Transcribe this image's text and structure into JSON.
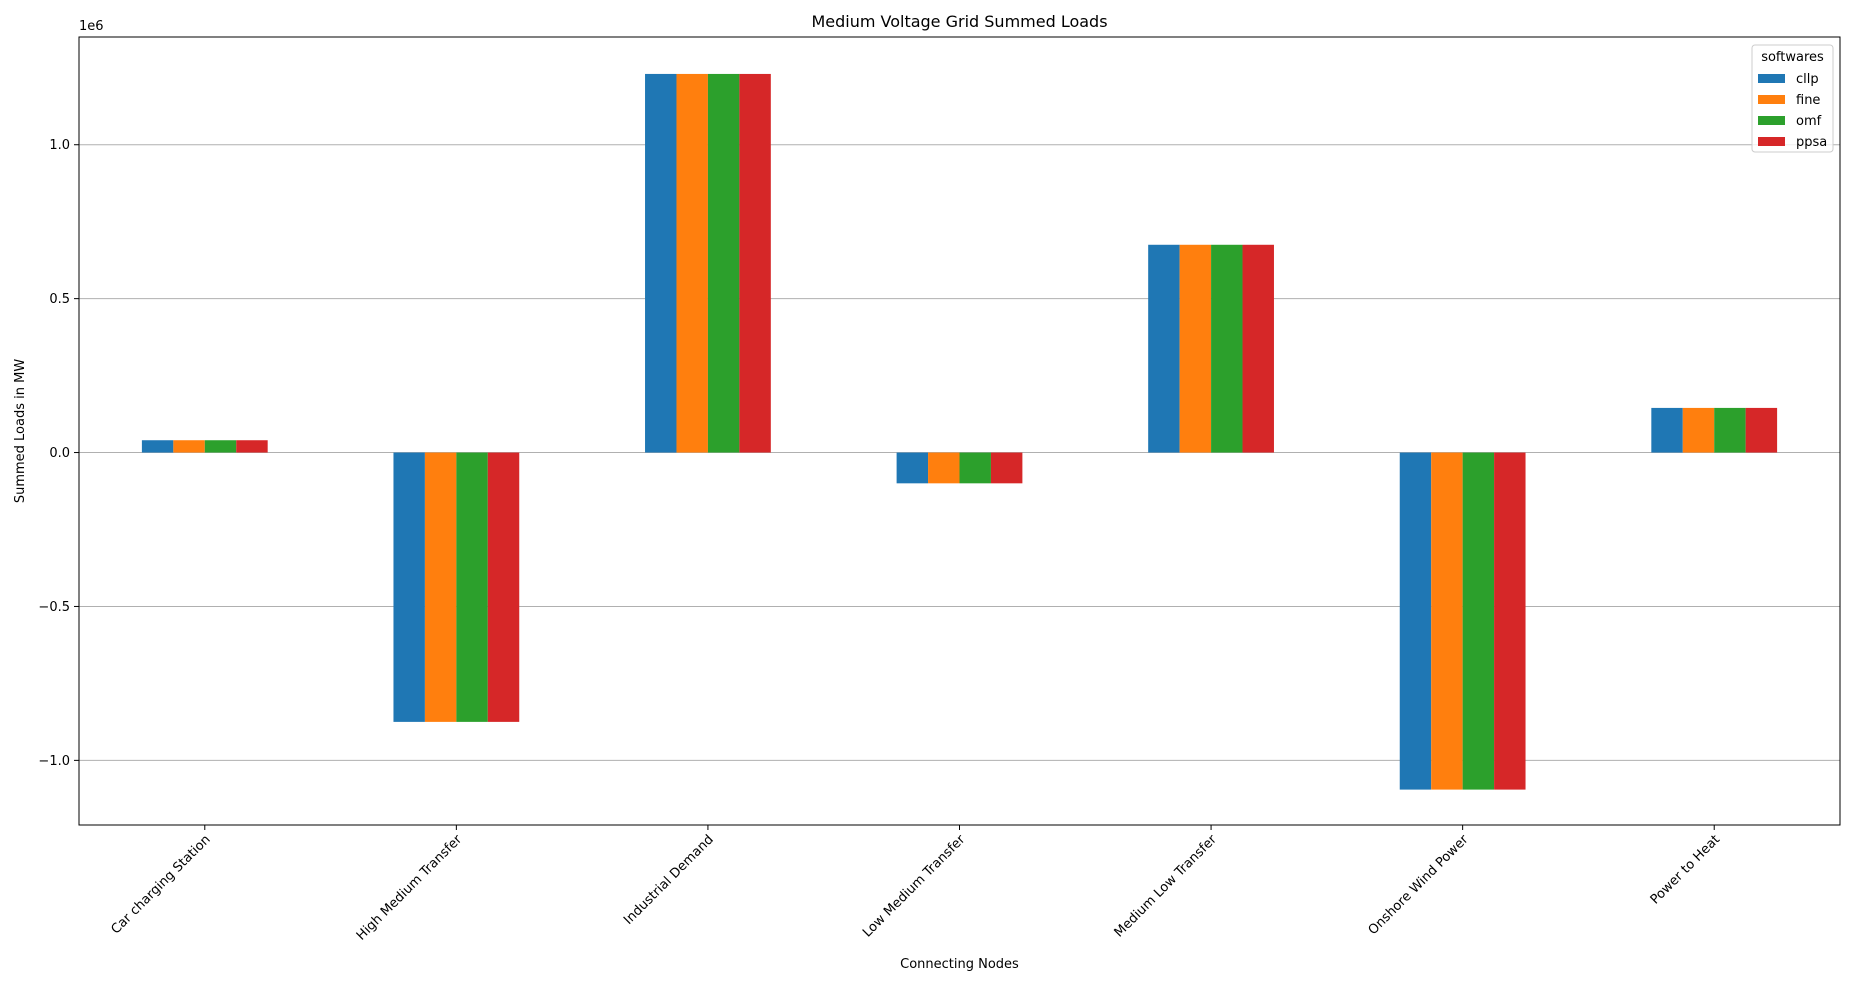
{
  "chart_data": {
    "type": "bar",
    "title": "Medium Voltage Grid Summed Loads",
    "xlabel": "Connecting Nodes",
    "ylabel": "Summed Loads in MW",
    "y_scale_label": "1e6",
    "ylim": [
      -1.21,
      1.35
    ],
    "yticks": [
      -1.0,
      -0.5,
      0.0,
      0.5,
      1.0
    ],
    "ytick_labels": [
      "−1.0",
      "−0.5",
      "0.0",
      "0.5",
      "1.0"
    ],
    "grid": "horizontal",
    "legend": {
      "title": "softwares",
      "placement": "top-right"
    },
    "categories": [
      "Car charging Station",
      "High Medium Transfer",
      "Industrial Demand",
      "Low Medium Transfer",
      "Medium Low Transfer",
      "Onshore Wind Power",
      "Power to Heat"
    ],
    "series": [
      {
        "name": "cllp",
        "color": "#1f77b4",
        "values": [
          0.04,
          -0.875,
          1.23,
          -0.1,
          0.675,
          -1.095,
          0.145
        ]
      },
      {
        "name": "fine",
        "color": "#ff7f0e",
        "values": [
          0.04,
          -0.875,
          1.23,
          -0.1,
          0.675,
          -1.095,
          0.145
        ]
      },
      {
        "name": "omf",
        "color": "#2ca02c",
        "values": [
          0.04,
          -0.875,
          1.23,
          -0.1,
          0.675,
          -1.095,
          0.145
        ]
      },
      {
        "name": "ppsa",
        "color": "#d62728",
        "values": [
          0.04,
          -0.875,
          1.23,
          -0.1,
          0.675,
          -1.095,
          0.145
        ]
      }
    ]
  }
}
